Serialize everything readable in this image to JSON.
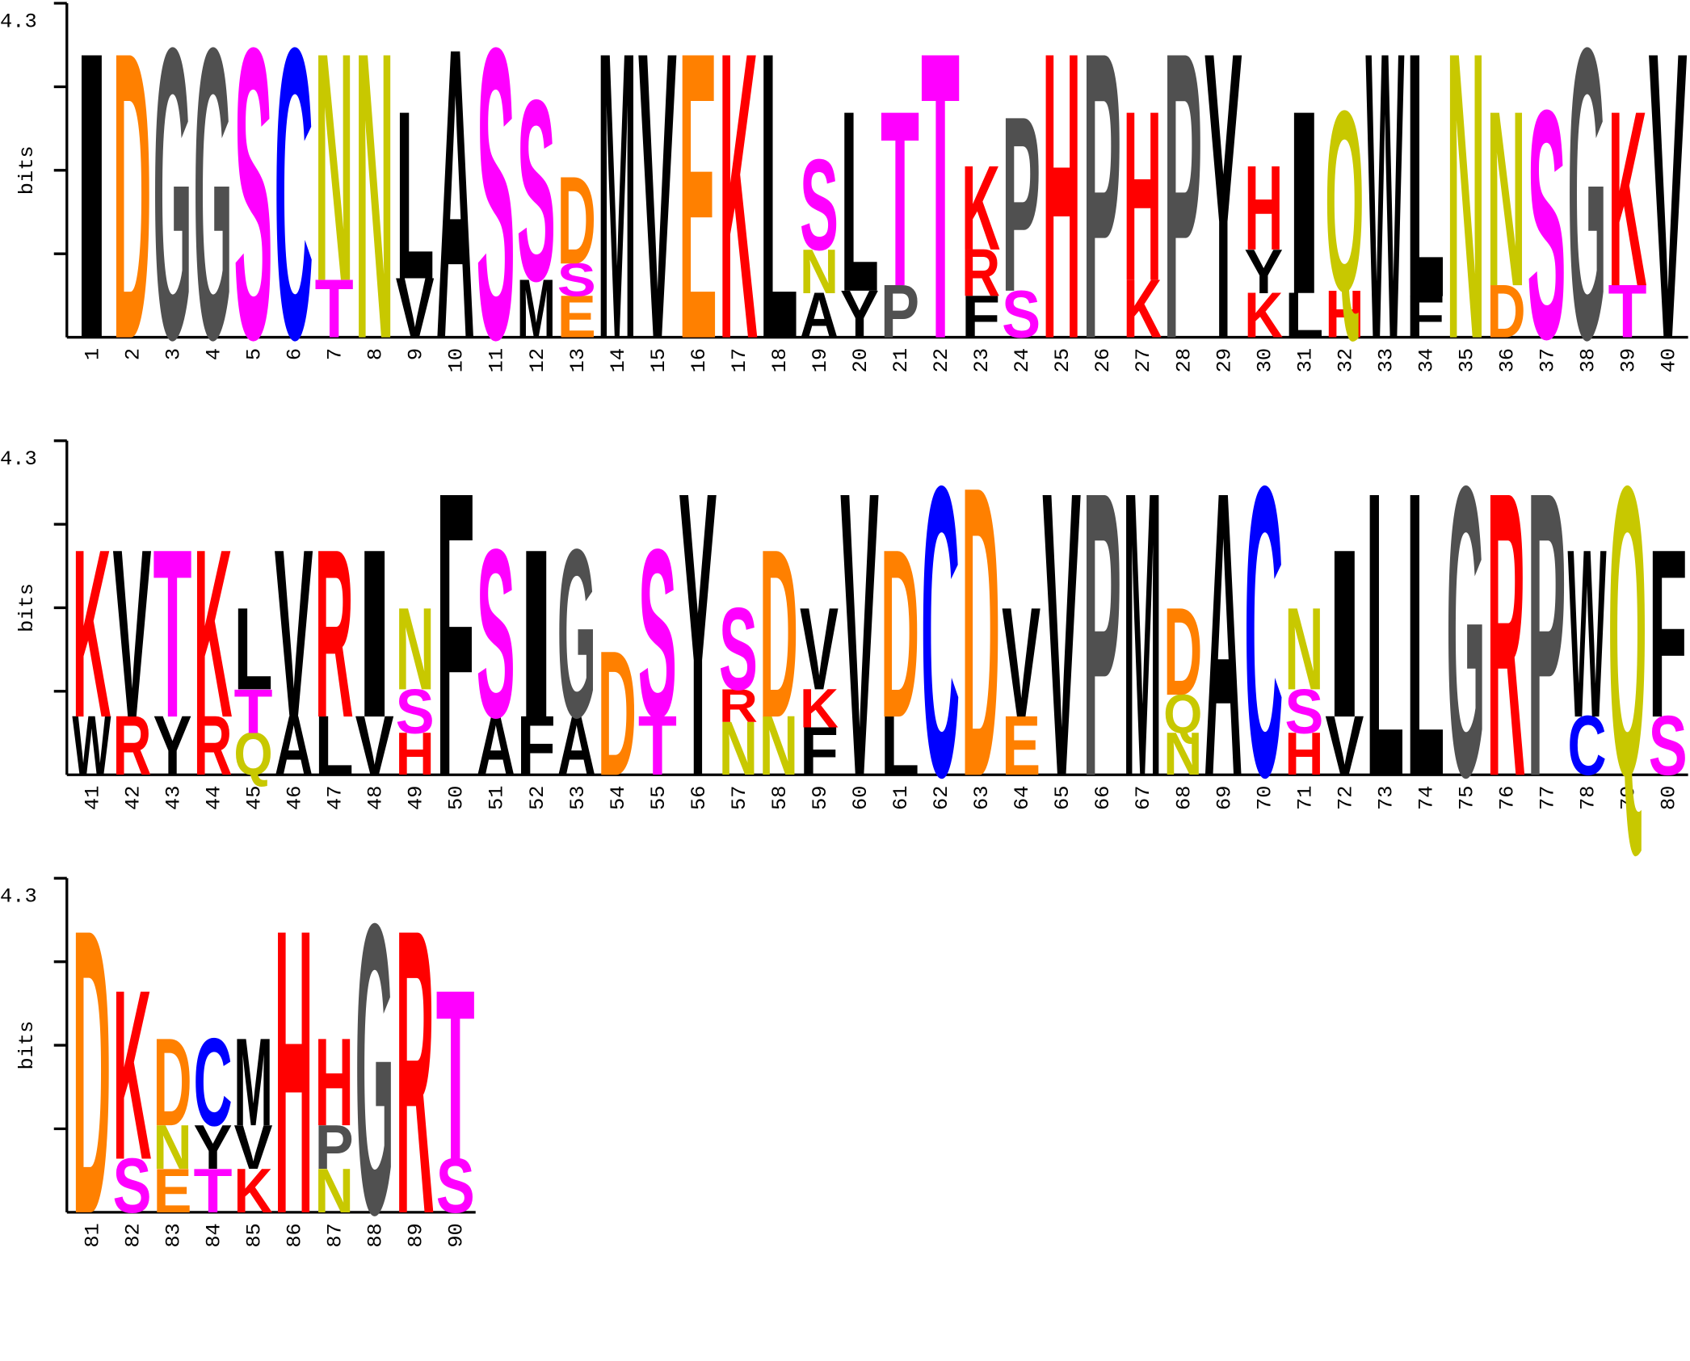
{
  "chart_data": {
    "type": "logo",
    "ylabel": "bits",
    "ylim": [
      0,
      4.3
    ],
    "yticks": [
      4.3
    ],
    "minor_yticks": [
      1.075,
      2.15,
      3.225
    ],
    "colors": {
      "D": "#ff8000",
      "E": "#ff8000",
      "G": "#505050",
      "P": "#505050",
      "S": "#ff00ff",
      "T": "#ff00ff",
      "C": "#0000ff",
      "N": "#c8c800",
      "Q": "#c8c800",
      "K": "#ff0000",
      "R": "#ff0000",
      "H": "#ff0000",
      "A": "#000000",
      "V": "#000000",
      "L": "#000000",
      "I": "#000000",
      "M": "#000000",
      "F": "#000000",
      "W": "#000000",
      "Y": "#000000"
    },
    "categories": [
      1,
      2,
      3,
      4,
      5,
      6,
      7,
      8,
      9,
      10,
      11,
      12,
      13,
      14,
      15,
      16,
      17,
      18,
      19,
      20,
      21,
      22,
      23,
      24,
      25,
      26,
      27,
      28,
      29,
      30,
      31,
      32,
      33,
      34,
      35,
      36,
      37,
      38,
      39,
      40,
      41,
      42,
      43,
      44,
      45,
      46,
      47,
      48,
      49,
      50,
      51,
      52,
      53,
      54,
      55,
      56,
      57,
      58,
      59,
      60,
      61,
      62,
      63,
      64,
      65,
      66,
      67,
      68,
      69,
      70,
      71,
      72,
      73,
      74,
      75,
      76,
      77,
      78,
      79,
      80,
      81,
      82,
      83,
      84,
      85,
      86,
      87,
      88,
      89,
      90
    ],
    "stacks": [
      [
        {
          "letter": "I",
          "bits": 3.63
        }
      ],
      [
        {
          "letter": "D",
          "bits": 3.63
        }
      ],
      [
        {
          "letter": "G",
          "bits": 3.68
        }
      ],
      [
        {
          "letter": "G",
          "bits": 3.68
        }
      ],
      [
        {
          "letter": "S",
          "bits": 3.68
        }
      ],
      [
        {
          "letter": "C",
          "bits": 3.68
        }
      ],
      [
        {
          "letter": "T",
          "bits": 0.74
        },
        {
          "letter": "N",
          "bits": 2.89
        }
      ],
      [
        {
          "letter": "N",
          "bits": 3.63
        }
      ],
      [
        {
          "letter": "V",
          "bits": 0.76
        },
        {
          "letter": "L",
          "bits": 2.13
        }
      ],
      [
        {
          "letter": "A",
          "bits": 3.68
        }
      ],
      [
        {
          "letter": "S",
          "bits": 3.68
        }
      ],
      [
        {
          "letter": "M",
          "bits": 0.74
        },
        {
          "letter": "S",
          "bits": 2.29
        }
      ],
      [
        {
          "letter": "E",
          "bits": 0.53
        },
        {
          "letter": "S",
          "bits": 0.42
        },
        {
          "letter": "D",
          "bits": 1.11
        }
      ],
      [
        {
          "letter": "M",
          "bits": 3.63
        }
      ],
      [
        {
          "letter": "V",
          "bits": 3.63
        }
      ],
      [
        {
          "letter": "E",
          "bits": 3.63
        }
      ],
      [
        {
          "letter": "K",
          "bits": 3.63
        }
      ],
      [
        {
          "letter": "L",
          "bits": 3.63
        }
      ],
      [
        {
          "letter": "A",
          "bits": 0.57
        },
        {
          "letter": "N",
          "bits": 0.56
        },
        {
          "letter": "S",
          "bits": 1.15
        }
      ],
      [
        {
          "letter": "Y",
          "bits": 0.6
        },
        {
          "letter": "L",
          "bits": 2.29
        }
      ],
      [
        {
          "letter": "P",
          "bits": 0.67
        },
        {
          "letter": "T",
          "bits": 2.22
        }
      ],
      [
        {
          "letter": "T",
          "bits": 3.63
        }
      ],
      [
        {
          "letter": "F",
          "bits": 0.53
        },
        {
          "letter": "R",
          "bits": 0.6
        },
        {
          "letter": "K",
          "bits": 1.07
        }
      ],
      [
        {
          "letter": "S",
          "bits": 0.6
        },
        {
          "letter": "P",
          "bits": 2.22
        }
      ],
      [
        {
          "letter": "H",
          "bits": 3.63
        }
      ],
      [
        {
          "letter": "P",
          "bits": 3.63
        }
      ],
      [
        {
          "letter": "K",
          "bits": 0.74
        },
        {
          "letter": "H",
          "bits": 2.15
        }
      ],
      [
        {
          "letter": "P",
          "bits": 3.63
        }
      ],
      [
        {
          "letter": "Y",
          "bits": 3.63
        }
      ],
      [
        {
          "letter": "K",
          "bits": 0.57
        },
        {
          "letter": "Y",
          "bits": 0.56
        },
        {
          "letter": "H",
          "bits": 1.07
        }
      ],
      [
        {
          "letter": "L",
          "bits": 0.57
        },
        {
          "letter": "I",
          "bits": 2.32
        }
      ],
      [
        {
          "letter": "H",
          "bits": 0.6
        },
        {
          "letter": "Q",
          "bits": 2.29
        }
      ],
      [
        {
          "letter": "W",
          "bits": 3.63
        }
      ],
      [
        {
          "letter": "F",
          "bits": 0.53
        },
        {
          "letter": "L",
          "bits": 3.1
        }
      ],
      [
        {
          "letter": "N",
          "bits": 3.63
        }
      ],
      [
        {
          "letter": "D",
          "bits": 0.67
        },
        {
          "letter": "N",
          "bits": 2.22
        }
      ],
      [
        {
          "letter": "S",
          "bits": 2.89
        }
      ],
      [
        {
          "letter": "G",
          "bits": 3.68
        }
      ],
      [
        {
          "letter": "T",
          "bits": 0.67
        },
        {
          "letter": "K",
          "bits": 2.22
        }
      ],
      [
        {
          "letter": "V",
          "bits": 3.63
        }
      ],
      [
        {
          "letter": "W",
          "bits": 0.75
        },
        {
          "letter": "K",
          "bits": 2.13
        }
      ],
      [
        {
          "letter": "R",
          "bits": 0.75
        },
        {
          "letter": "V",
          "bits": 2.13
        }
      ],
      [
        {
          "letter": "Y",
          "bits": 0.75
        },
        {
          "letter": "T",
          "bits": 2.13
        }
      ],
      [
        {
          "letter": "R",
          "bits": 0.75
        },
        {
          "letter": "K",
          "bits": 2.13
        }
      ],
      [
        {
          "letter": "Q",
          "bits": 0.54
        },
        {
          "letter": "T",
          "bits": 0.56
        },
        {
          "letter": "L",
          "bits": 1.04
        }
      ],
      [
        {
          "letter": "A",
          "bits": 0.75
        },
        {
          "letter": "V",
          "bits": 2.13
        }
      ],
      [
        {
          "letter": "L",
          "bits": 0.75
        },
        {
          "letter": "R",
          "bits": 2.13
        }
      ],
      [
        {
          "letter": "V",
          "bits": 0.75
        },
        {
          "letter": "I",
          "bits": 2.13
        }
      ],
      [
        {
          "letter": "H",
          "bits": 0.54
        },
        {
          "letter": "S",
          "bits": 0.56
        },
        {
          "letter": "N",
          "bits": 1.04
        }
      ],
      [
        {
          "letter": "F",
          "bits": 3.6
        }
      ],
      [
        {
          "letter": "A",
          "bits": 0.75
        },
        {
          "letter": "S",
          "bits": 2.13
        }
      ],
      [
        {
          "letter": "F",
          "bits": 0.75
        },
        {
          "letter": "I",
          "bits": 2.13
        }
      ],
      [
        {
          "letter": "A",
          "bits": 0.75
        },
        {
          "letter": "G",
          "bits": 2.13
        }
      ],
      [
        {
          "letter": "D",
          "bits": 1.58
        }
      ],
      [
        {
          "letter": "T",
          "bits": 0.75
        },
        {
          "letter": "S",
          "bits": 2.13
        }
      ],
      [
        {
          "letter": "Y",
          "bits": 3.6
        }
      ],
      [
        {
          "letter": "N",
          "bits": 0.68
        },
        {
          "letter": "R",
          "bits": 0.42
        },
        {
          "letter": "S",
          "bits": 1.04
        }
      ],
      [
        {
          "letter": "N",
          "bits": 0.75
        },
        {
          "letter": "D",
          "bits": 2.13
        }
      ],
      [
        {
          "letter": "F",
          "bits": 0.61
        },
        {
          "letter": "K",
          "bits": 0.49
        },
        {
          "letter": "V",
          "bits": 1.04
        }
      ],
      [
        {
          "letter": "V",
          "bits": 3.6
        }
      ],
      [
        {
          "letter": "L",
          "bits": 0.75
        },
        {
          "letter": "D",
          "bits": 2.13
        }
      ],
      [
        {
          "letter": "C",
          "bits": 3.67
        }
      ],
      [
        {
          "letter": "D",
          "bits": 3.67
        }
      ],
      [
        {
          "letter": "E",
          "bits": 0.75
        },
        {
          "letter": "V",
          "bits": 1.39
        }
      ],
      [
        {
          "letter": "V",
          "bits": 3.6
        }
      ],
      [
        {
          "letter": "P",
          "bits": 3.6
        }
      ],
      [
        {
          "letter": "M",
          "bits": 3.6
        }
      ],
      [
        {
          "letter": "N",
          "bits": 0.54
        },
        {
          "letter": "Q",
          "bits": 0.49
        },
        {
          "letter": "D",
          "bits": 1.11
        }
      ],
      [
        {
          "letter": "A",
          "bits": 3.6
        }
      ],
      [
        {
          "letter": "C",
          "bits": 3.67
        }
      ],
      [
        {
          "letter": "H",
          "bits": 0.54
        },
        {
          "letter": "S",
          "bits": 0.56
        },
        {
          "letter": "N",
          "bits": 1.04
        }
      ],
      [
        {
          "letter": "V",
          "bits": 0.75
        },
        {
          "letter": "I",
          "bits": 2.13
        }
      ],
      [
        {
          "letter": "L",
          "bits": 3.6
        }
      ],
      [
        {
          "letter": "L",
          "bits": 3.6
        }
      ],
      [
        {
          "letter": "G",
          "bits": 3.67
        }
      ],
      [
        {
          "letter": "R",
          "bits": 3.6
        }
      ],
      [
        {
          "letter": "P",
          "bits": 3.6
        }
      ],
      [
        {
          "letter": "C",
          "bits": 0.75
        },
        {
          "letter": "W",
          "bits": 2.13
        }
      ],
      [
        {
          "letter": "Q",
          "bits": 3.67
        }
      ],
      [
        {
          "letter": "S",
          "bits": 0.75
        },
        {
          "letter": "F",
          "bits": 2.13
        }
      ],
      [
        {
          "letter": "D",
          "bits": 3.6
        }
      ],
      [
        {
          "letter": "S",
          "bits": 0.69
        },
        {
          "letter": "K",
          "bits": 2.15
        }
      ],
      [
        {
          "letter": "E",
          "bits": 0.56
        },
        {
          "letter": "N",
          "bits": 0.56
        },
        {
          "letter": "D",
          "bits": 1.11
        }
      ],
      [
        {
          "letter": "T",
          "bits": 0.56
        },
        {
          "letter": "Y",
          "bits": 0.56
        },
        {
          "letter": "C",
          "bits": 1.11
        }
      ],
      [
        {
          "letter": "K",
          "bits": 0.56
        },
        {
          "letter": "V",
          "bits": 0.56
        },
        {
          "letter": "M",
          "bits": 1.11
        }
      ],
      [
        {
          "letter": "H",
          "bits": 3.6
        }
      ],
      [
        {
          "letter": "N",
          "bits": 0.56
        },
        {
          "letter": "P",
          "bits": 0.56
        },
        {
          "letter": "H",
          "bits": 1.11
        }
      ],
      [
        {
          "letter": "G",
          "bits": 3.67
        }
      ],
      [
        {
          "letter": "R",
          "bits": 3.6
        }
      ],
      [
        {
          "letter": "S",
          "bits": 0.69
        },
        {
          "letter": "T",
          "bits": 2.15
        }
      ]
    ]
  }
}
